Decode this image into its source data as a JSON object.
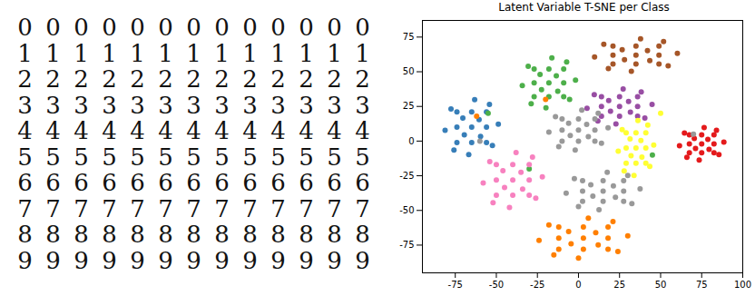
{
  "digit_samples": {
    "rows": [
      "0000000000000",
      "1111111111111",
      "2222222222222",
      "3333333333333",
      "4444444444444",
      "5555555555555",
      "6666666666666",
      "7777777777777",
      "8888888888888",
      "9999999999999"
    ]
  },
  "chart_data": {
    "type": "scatter",
    "title": "Latent Variable T-SNE per Class",
    "xlim": [
      -95,
      100
    ],
    "xticks": [
      -75,
      -50,
      -25,
      0,
      25,
      50,
      75,
      100
    ],
    "ylim": [
      -95,
      87
    ],
    "yticks": [
      -75,
      -50,
      -25,
      0,
      25,
      50,
      75
    ],
    "marker": "o",
    "series": [
      {
        "color": "#377eb8",
        "x": [
          -65,
          -56,
          -74,
          -65,
          -65,
          -56,
          -74,
          -56,
          -74,
          -48.8,
          -81.2,
          -63.2,
          -66.8,
          -52.4,
          -77.6,
          -60.5,
          -69.5,
          -59.6,
          -70.4,
          -54.2,
          -75.8
        ],
        "y": [
          10,
          10,
          10,
          21,
          -1,
          21,
          21,
          -1,
          -1,
          12.2,
          7.8,
          29.8,
          -9.8,
          -3.2,
          23.2,
          15.5,
          4.5,
          3.4,
          16.6,
          26.5,
          -6.5
        ]
      },
      {
        "color": "#a65628",
        "x": [
          35,
          49,
          21,
          35,
          35,
          49,
          21,
          49,
          21,
          60.2,
          9.8,
          37.8,
          32.2,
          54.6,
          15.4,
          42,
          28,
          43.4,
          26.6,
          51.8,
          18.2
        ],
        "y": [
          62,
          62,
          62,
          68.5,
          55.5,
          68.5,
          68.5,
          55.5,
          55.5,
          63.3,
          60.7,
          73.7,
          50.3,
          54.2,
          69.8,
          65.25,
          58.75,
          58.1,
          65.9,
          71.75,
          52.25
        ]
      },
      {
        "color": "#4daf4a",
        "x": [
          -18,
          -9,
          -27,
          -18,
          -18,
          -9,
          -27,
          -9,
          -27,
          -1.8,
          -34.2,
          -16.2,
          -19.8,
          -5.4,
          -30.6,
          -13.5,
          -22.5,
          -12.6,
          -23.4,
          -7.2,
          -28.8,
          -55,
          45,
          -30
        ],
        "y": [
          42,
          42,
          42,
          52,
          32,
          52,
          52,
          32,
          32,
          44,
          40,
          60,
          24,
          30,
          54,
          47,
          37,
          36,
          48,
          57,
          27,
          20,
          -10,
          -20
        ]
      },
      {
        "color": "#984ea3",
        "x": [
          25,
          36,
          14,
          25,
          25,
          36,
          14,
          36,
          14,
          44.8,
          5.2,
          27.2,
          22.8,
          40.4,
          9.6,
          30.5,
          19.5,
          31.6,
          18.4,
          38.2,
          11.8
        ],
        "y": [
          25,
          25,
          25,
          32,
          18,
          32,
          32,
          18,
          18,
          26.4,
          23.6,
          37.6,
          12.4,
          16.6,
          33.4,
          28.5,
          21.5,
          20.8,
          29.2,
          35.5,
          14.5
        ]
      },
      {
        "color": "#e41a1c",
        "x": [
          75,
          82.5,
          67.5,
          75,
          75,
          82.5,
          67.5,
          82.5,
          67.5,
          88.5,
          61.5,
          76.5,
          73.5,
          85.5,
          64.5,
          78.75,
          71.25,
          79.5,
          70.5,
          84,
          66
        ],
        "y": [
          -2,
          -2,
          -2,
          4.5,
          -8.5,
          4.5,
          4.5,
          -8.5,
          -8.5,
          -0.7,
          -3.3,
          9.7,
          -13.7,
          -9.8,
          5.8,
          1.25,
          -5.25,
          -5.9,
          1.9,
          7.75,
          -11.75
        ]
      },
      {
        "color": "#ffff33",
        "x": [
          35,
          41,
          29,
          35,
          35,
          41,
          29,
          41,
          29,
          45.8,
          24.2,
          36.2,
          33.8,
          43.4,
          26.6,
          38,
          32,
          38.6,
          31.4,
          42.2,
          27.8,
          50
        ],
        "y": [
          -5,
          -5,
          -5,
          6,
          -16,
          6,
          6,
          -16,
          -16,
          -2.8,
          -7.2,
          14.8,
          -24.8,
          -18.2,
          8.2,
          0.5,
          -10.5,
          -11.6,
          1.6,
          11.5,
          -21.5,
          20
        ]
      },
      {
        "color": "#999999",
        "x": [
          0,
          10,
          -10,
          0,
          0,
          10,
          -10,
          10,
          -10,
          18,
          -18,
          2,
          -2,
          14,
          -14,
          5,
          -5,
          6,
          -6,
          12,
          -12,
          -60,
          70
        ],
        "y": [
          8,
          8,
          8,
          16,
          0,
          16,
          16,
          0,
          0,
          9.6,
          6.4,
          22.4,
          -6.4,
          -1.6,
          17.6,
          12,
          4,
          3.2,
          12.8,
          20,
          -4,
          0,
          5
        ]
      },
      {
        "color": "#999999",
        "x": [
          15,
          27.5,
          2.5,
          15,
          15,
          27.5,
          2.5,
          27.5,
          2.5,
          37.5,
          -7.5,
          17.5,
          12.5,
          32.5,
          -2.5,
          21.25,
          8.75,
          22.5,
          7.5,
          30,
          0
        ],
        "y": [
          -36,
          -36,
          -36,
          -28.5,
          -43.5,
          -28.5,
          -28.5,
          -43.5,
          -43.5,
          -34.5,
          -37.5,
          -22.5,
          -49.5,
          -45,
          -27,
          -32.25,
          -39.75,
          -40.5,
          -31.5,
          -24.75,
          -47.25
        ]
      },
      {
        "color": "#f781bf",
        "x": [
          -40,
          -30,
          -50,
          -40,
          -40,
          -30,
          -50,
          -30,
          -50,
          -22,
          -58,
          -38,
          -42,
          -26,
          -54,
          -35,
          -45,
          -34,
          -46,
          -28,
          -52
        ],
        "y": [
          -28,
          -28,
          -28,
          -17,
          -39,
          -17,
          -17,
          -39,
          -39,
          -25.8,
          -30.2,
          -8.2,
          -47.8,
          -41.2,
          -14.8,
          -22.5,
          -33.5,
          -34.6,
          -21.4,
          -11.5,
          -44.5
        ]
      },
      {
        "color": "#ff7f00",
        "x": [
          3,
          18,
          -12,
          3,
          3,
          18,
          -12,
          18,
          -12,
          30,
          -24,
          6,
          0,
          24,
          -18,
          10.5,
          -4.5,
          12,
          -6,
          21,
          -15,
          -62,
          -20
        ],
        "y": [
          -70,
          -70,
          -70,
          -62,
          -78,
          -62,
          -62,
          -78,
          -78,
          -68.4,
          -71.6,
          -55.6,
          -84.4,
          -79.6,
          -60.4,
          -66,
          -74,
          -74.8,
          -65.2,
          -58,
          -82,
          18,
          30
        ]
      }
    ]
  }
}
